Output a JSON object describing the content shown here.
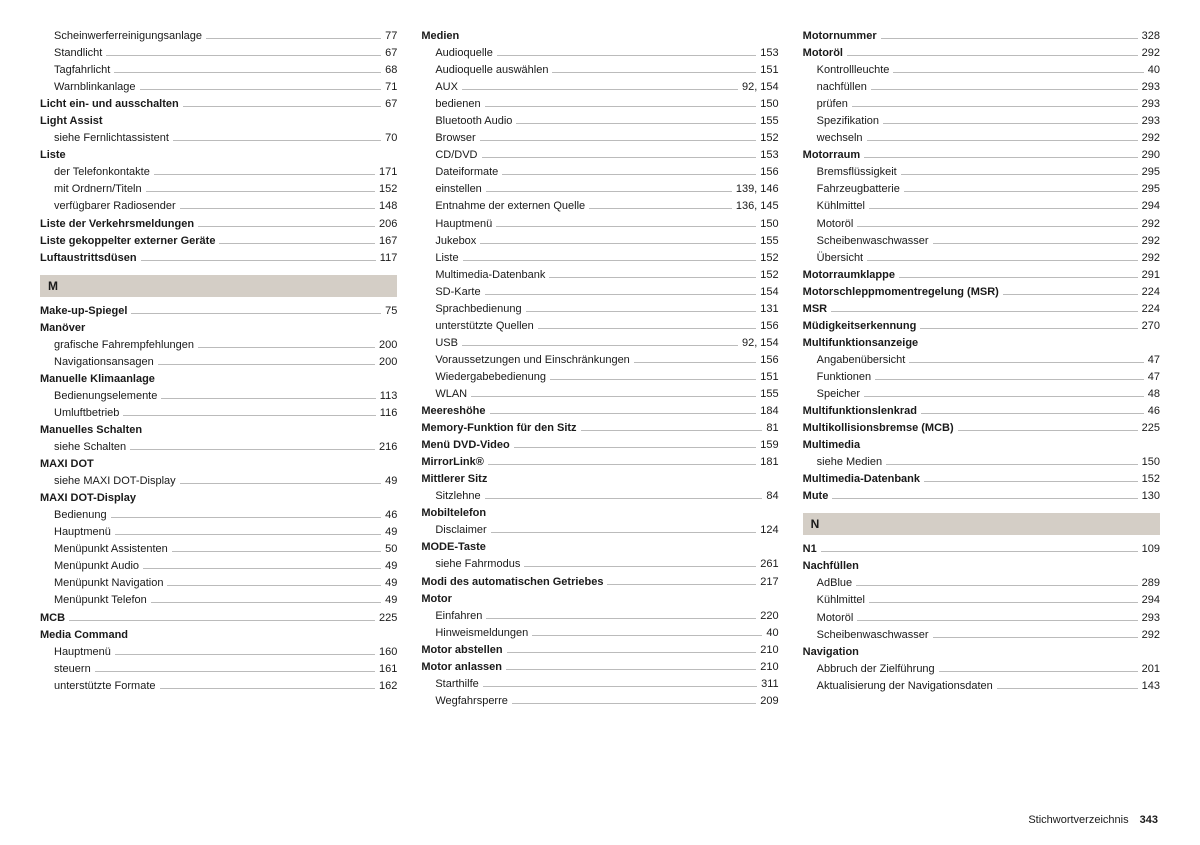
{
  "footer": {
    "label": "Stichwortverzeichnis",
    "page": "343"
  },
  "columns": [
    [
      {
        "t": "sub",
        "label": "Scheinwerferreinigungsanlage",
        "page": "77"
      },
      {
        "t": "sub",
        "label": "Standlicht",
        "page": "67"
      },
      {
        "t": "sub",
        "label": "Tagfahrlicht",
        "page": "68"
      },
      {
        "t": "sub",
        "label": "Warnblinkanlage",
        "page": "71"
      },
      {
        "t": "bold",
        "label": "Licht ein- und ausschalten",
        "page": "67"
      },
      {
        "t": "bold nopg",
        "label": "Light Assist"
      },
      {
        "t": "sub",
        "label": "siehe Fernlichtassistent",
        "page": "70"
      },
      {
        "t": "bold nopg",
        "label": "Liste"
      },
      {
        "t": "sub",
        "label": "der Telefonkontakte",
        "page": "171"
      },
      {
        "t": "sub",
        "label": "mit Ordnern/Titeln",
        "page": "152"
      },
      {
        "t": "sub",
        "label": "verfügbarer Radiosender",
        "page": "148"
      },
      {
        "t": "bold",
        "label": "Liste der Verkehrsmeldungen",
        "page": "206"
      },
      {
        "t": "bold",
        "label": "Liste gekoppelter externer Geräte",
        "page": "167"
      },
      {
        "t": "bold",
        "label": "Luftaustrittsdüsen",
        "page": "117"
      },
      {
        "t": "letter",
        "label": "M"
      },
      {
        "t": "bold",
        "label": "Make-up-Spiegel",
        "page": "75"
      },
      {
        "t": "bold nopg",
        "label": "Manöver"
      },
      {
        "t": "sub",
        "label": "grafische Fahrempfehlungen",
        "page": "200"
      },
      {
        "t": "sub",
        "label": "Navigationsansagen",
        "page": "200"
      },
      {
        "t": "bold nopg",
        "label": "Manuelle Klimaanlage"
      },
      {
        "t": "sub",
        "label": "Bedienungselemente",
        "page": "113"
      },
      {
        "t": "sub",
        "label": "Umluftbetrieb",
        "page": "116"
      },
      {
        "t": "bold nopg",
        "label": "Manuelles Schalten"
      },
      {
        "t": "sub",
        "label": "siehe Schalten",
        "page": "216"
      },
      {
        "t": "bold nopg",
        "label": "MAXI DOT"
      },
      {
        "t": "sub",
        "label": "siehe MAXI DOT-Display",
        "page": "49"
      },
      {
        "t": "bold nopg",
        "label": "MAXI DOT-Display"
      },
      {
        "t": "sub",
        "label": "Bedienung",
        "page": "46"
      },
      {
        "t": "sub",
        "label": "Hauptmenü",
        "page": "49"
      },
      {
        "t": "sub",
        "label": "Menüpunkt Assistenten",
        "page": "50"
      },
      {
        "t": "sub",
        "label": "Menüpunkt Audio",
        "page": "49"
      },
      {
        "t": "sub",
        "label": "Menüpunkt Navigation",
        "page": "49"
      },
      {
        "t": "sub",
        "label": "Menüpunkt Telefon",
        "page": "49"
      },
      {
        "t": "bold",
        "label": "MCB",
        "page": "225"
      },
      {
        "t": "bold nopg",
        "label": "Media Command"
      },
      {
        "t": "sub",
        "label": "Hauptmenü",
        "page": "160"
      },
      {
        "t": "sub",
        "label": "steuern",
        "page": "161"
      },
      {
        "t": "sub",
        "label": "unterstützte Formate",
        "page": "162"
      }
    ],
    [
      {
        "t": "bold nopg",
        "label": "Medien"
      },
      {
        "t": "sub",
        "label": "Audioquelle",
        "page": "153"
      },
      {
        "t": "sub",
        "label": "Audioquelle auswählen",
        "page": "151"
      },
      {
        "t": "sub",
        "label": "AUX",
        "page": "92, 154"
      },
      {
        "t": "sub",
        "label": "bedienen",
        "page": "150"
      },
      {
        "t": "sub",
        "label": "Bluetooth Audio",
        "page": "155"
      },
      {
        "t": "sub",
        "label": "Browser",
        "page": "152"
      },
      {
        "t": "sub",
        "label": "CD/DVD",
        "page": "153"
      },
      {
        "t": "sub",
        "label": "Dateiformate",
        "page": "156"
      },
      {
        "t": "sub",
        "label": "einstellen",
        "page": "139, 146"
      },
      {
        "t": "sub",
        "label": "Entnahme der externen Quelle",
        "page": "136, 145"
      },
      {
        "t": "sub",
        "label": "Hauptmenü",
        "page": "150"
      },
      {
        "t": "sub",
        "label": "Jukebox",
        "page": "155"
      },
      {
        "t": "sub",
        "label": "Liste",
        "page": "152"
      },
      {
        "t": "sub",
        "label": "Multimedia-Datenbank",
        "page": "152"
      },
      {
        "t": "sub",
        "label": "SD-Karte",
        "page": "154"
      },
      {
        "t": "sub",
        "label": "Sprachbedienung",
        "page": "131"
      },
      {
        "t": "sub",
        "label": "unterstützte Quellen",
        "page": "156"
      },
      {
        "t": "sub",
        "label": "USB",
        "page": "92, 154"
      },
      {
        "t": "sub",
        "label": "Voraussetzungen und Einschränkungen",
        "page": "156"
      },
      {
        "t": "sub",
        "label": "Wiedergabebedienung",
        "page": "151"
      },
      {
        "t": "sub",
        "label": "WLAN",
        "page": "155"
      },
      {
        "t": "bold",
        "label": "Meereshöhe",
        "page": "184"
      },
      {
        "t": "bold",
        "label": "Memory-Funktion für den Sitz",
        "page": "81"
      },
      {
        "t": "bold",
        "label": "Menü DVD-Video",
        "page": "159"
      },
      {
        "t": "bold",
        "label": "MirrorLink®",
        "page": "181"
      },
      {
        "t": "bold nopg",
        "label": "Mittlerer Sitz"
      },
      {
        "t": "sub",
        "label": "Sitzlehne",
        "page": "84"
      },
      {
        "t": "bold nopg",
        "label": "Mobiltelefon"
      },
      {
        "t": "sub",
        "label": "Disclaimer",
        "page": "124"
      },
      {
        "t": "bold nopg",
        "label": "MODE-Taste"
      },
      {
        "t": "sub",
        "label": "siehe Fahrmodus",
        "page": "261"
      },
      {
        "t": "bold",
        "label": "Modi des automatischen Getriebes",
        "page": "217"
      },
      {
        "t": "bold nopg",
        "label": "Motor"
      },
      {
        "t": "sub",
        "label": "Einfahren",
        "page": "220"
      },
      {
        "t": "sub",
        "label": "Hinweismeldungen",
        "page": "40"
      },
      {
        "t": "bold",
        "label": "Motor abstellen",
        "page": "210"
      },
      {
        "t": "bold",
        "label": "Motor anlassen",
        "page": "210"
      },
      {
        "t": "sub",
        "label": "Starthilfe",
        "page": "311"
      },
      {
        "t": "sub",
        "label": "Wegfahrsperre",
        "page": "209"
      }
    ],
    [
      {
        "t": "bold",
        "label": "Motornummer",
        "page": "328"
      },
      {
        "t": "bold",
        "label": "Motoröl",
        "page": "292"
      },
      {
        "t": "sub",
        "label": "Kontrollleuchte",
        "page": "40"
      },
      {
        "t": "sub",
        "label": "nachfüllen",
        "page": "293"
      },
      {
        "t": "sub",
        "label": "prüfen",
        "page": "293"
      },
      {
        "t": "sub",
        "label": "Spezifikation",
        "page": "293"
      },
      {
        "t": "sub",
        "label": "wechseln",
        "page": "292"
      },
      {
        "t": "bold",
        "label": "Motorraum",
        "page": "290"
      },
      {
        "t": "sub",
        "label": "Bremsflüssigkeit",
        "page": "295"
      },
      {
        "t": "sub",
        "label": "Fahrzeugbatterie",
        "page": "295"
      },
      {
        "t": "sub",
        "label": "Kühlmittel",
        "page": "294"
      },
      {
        "t": "sub",
        "label": "Motoröl",
        "page": "292"
      },
      {
        "t": "sub",
        "label": "Scheibenwaschwasser",
        "page": "292"
      },
      {
        "t": "sub",
        "label": "Übersicht",
        "page": "292"
      },
      {
        "t": "bold",
        "label": "Motorraumklappe",
        "page": "291"
      },
      {
        "t": "bold",
        "label": "Motorschleppmomentregelung (MSR)",
        "page": "224"
      },
      {
        "t": "bold",
        "label": "MSR",
        "page": "224"
      },
      {
        "t": "bold",
        "label": "Müdigkeitserkennung",
        "page": "270"
      },
      {
        "t": "bold nopg",
        "label": "Multifunktionsanzeige"
      },
      {
        "t": "sub",
        "label": "Angabenübersicht",
        "page": "47"
      },
      {
        "t": "sub",
        "label": "Funktionen",
        "page": "47"
      },
      {
        "t": "sub",
        "label": "Speicher",
        "page": "48"
      },
      {
        "t": "bold",
        "label": "Multifunktionslenkrad",
        "page": "46"
      },
      {
        "t": "bold",
        "label": "Multikollisionsbremse (MCB)",
        "page": "225"
      },
      {
        "t": "bold nopg",
        "label": "Multimedia"
      },
      {
        "t": "sub",
        "label": "siehe Medien",
        "page": "150"
      },
      {
        "t": "bold",
        "label": "Multimedia-Datenbank",
        "page": "152"
      },
      {
        "t": "bold",
        "label": "Mute",
        "page": "130"
      },
      {
        "t": "letter",
        "label": "N"
      },
      {
        "t": "bold",
        "label": "N1",
        "page": "109"
      },
      {
        "t": "bold nopg",
        "label": "Nachfüllen"
      },
      {
        "t": "sub",
        "label": "AdBlue",
        "page": "289"
      },
      {
        "t": "sub",
        "label": "Kühlmittel",
        "page": "294"
      },
      {
        "t": "sub",
        "label": "Motoröl",
        "page": "293"
      },
      {
        "t": "sub",
        "label": "Scheibenwaschwasser",
        "page": "292"
      },
      {
        "t": "bold nopg",
        "label": "Navigation"
      },
      {
        "t": "sub",
        "label": "Abbruch der Zielführung",
        "page": "201"
      },
      {
        "t": "sub",
        "label": "Aktualisierung der Navigationsdaten",
        "page": "143"
      }
    ]
  ]
}
